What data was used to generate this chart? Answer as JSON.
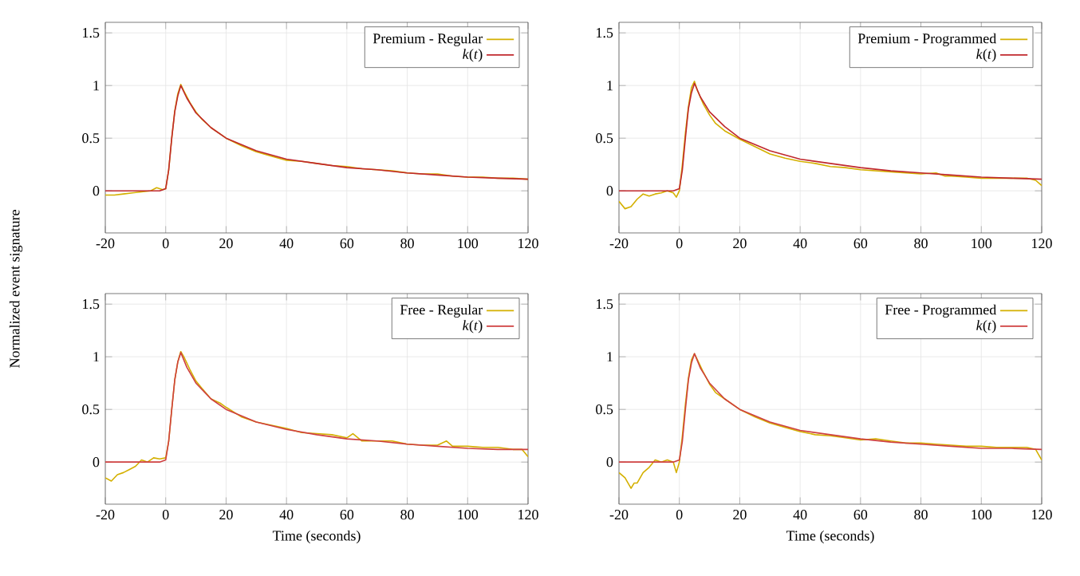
{
  "chart_data": [
    {
      "type": "line",
      "ylabel": "Normalized event signature",
      "xlim": [
        -20,
        120
      ],
      "ylim": [
        -0.4,
        1.6
      ],
      "xticks": [
        -20,
        0,
        20,
        40,
        60,
        80,
        100,
        120
      ],
      "yticks": [
        0,
        0.5,
        1,
        1.5
      ],
      "grid": true,
      "legend": "top right",
      "series": [
        {
          "name": "Premium - Regular",
          "color": "#d4b000",
          "x": [
            -20,
            -17,
            -14,
            -11,
            -8,
            -5,
            -3,
            -1,
            0,
            1,
            2,
            3,
            4,
            5,
            6,
            8,
            10,
            12,
            15,
            20,
            25,
            30,
            35,
            40,
            45,
            50,
            55,
            60,
            65,
            70,
            75,
            80,
            85,
            90,
            95,
            100,
            105,
            110,
            115,
            120
          ],
          "values": [
            -0.04,
            -0.04,
            -0.03,
            -0.02,
            -0.01,
            0.0,
            0.03,
            0.01,
            0.02,
            0.2,
            0.5,
            0.76,
            0.92,
            1.01,
            0.95,
            0.84,
            0.75,
            0.68,
            0.6,
            0.5,
            0.43,
            0.37,
            0.33,
            0.29,
            0.28,
            0.26,
            0.24,
            0.23,
            0.21,
            0.2,
            0.19,
            0.17,
            0.16,
            0.16,
            0.14,
            0.13,
            0.13,
            0.12,
            0.12,
            0.11
          ]
        },
        {
          "name": "*k*(*t*)",
          "color": "#c0282d",
          "x": [
            -20,
            -10,
            -2,
            0,
            1,
            2,
            3,
            4,
            5,
            7,
            10,
            15,
            20,
            30,
            40,
            50,
            60,
            70,
            80,
            90,
            100,
            110,
            120
          ],
          "values": [
            0,
            0,
            0,
            0.02,
            0.2,
            0.5,
            0.75,
            0.9,
            1.0,
            0.88,
            0.74,
            0.6,
            0.5,
            0.38,
            0.3,
            0.26,
            0.22,
            0.2,
            0.17,
            0.15,
            0.13,
            0.12,
            0.11
          ]
        }
      ]
    },
    {
      "type": "line",
      "xlim": [
        -20,
        120
      ],
      "ylim": [
        -0.4,
        1.6
      ],
      "xticks": [
        -20,
        0,
        20,
        40,
        60,
        80,
        100,
        120
      ],
      "yticks": [
        0,
        0.5,
        1,
        1.5
      ],
      "grid": true,
      "legend": "top right",
      "series": [
        {
          "name": "Premium - Programmed",
          "color": "#d4b000",
          "x": [
            -20,
            -18,
            -16,
            -14,
            -12,
            -10,
            -8,
            -6,
            -4,
            -2,
            -1,
            0,
            1,
            2,
            3,
            4,
            5,
            6,
            8,
            10,
            12,
            15,
            20,
            25,
            30,
            35,
            40,
            45,
            50,
            55,
            60,
            65,
            70,
            75,
            80,
            85,
            88,
            90,
            95,
            100,
            105,
            110,
            115,
            118,
            120
          ],
          "values": [
            -0.1,
            -0.17,
            -0.15,
            -0.08,
            -0.03,
            -0.05,
            -0.03,
            -0.02,
            0.0,
            -0.02,
            -0.06,
            0.0,
            0.25,
            0.55,
            0.8,
            0.98,
            1.04,
            0.95,
            0.82,
            0.72,
            0.64,
            0.57,
            0.49,
            0.42,
            0.35,
            0.31,
            0.28,
            0.26,
            0.23,
            0.22,
            0.2,
            0.19,
            0.18,
            0.17,
            0.16,
            0.17,
            0.14,
            0.14,
            0.13,
            0.12,
            0.12,
            0.12,
            0.12,
            0.1,
            0.05
          ]
        },
        {
          "name": "*k*(*t*)",
          "color": "#c0282d",
          "x": [
            -20,
            -10,
            -2,
            0,
            1,
            2,
            3,
            4,
            5,
            7,
            10,
            15,
            20,
            30,
            40,
            50,
            60,
            70,
            80,
            90,
            100,
            110,
            120
          ],
          "values": [
            0,
            0,
            0,
            0.02,
            0.2,
            0.5,
            0.78,
            0.93,
            1.02,
            0.89,
            0.75,
            0.61,
            0.5,
            0.38,
            0.3,
            0.26,
            0.22,
            0.19,
            0.17,
            0.15,
            0.13,
            0.12,
            0.11
          ]
        }
      ]
    },
    {
      "type": "line",
      "xlabel": "Time (seconds)",
      "xlim": [
        -20,
        120
      ],
      "ylim": [
        -0.4,
        1.6
      ],
      "xticks": [
        -20,
        0,
        20,
        40,
        60,
        80,
        100,
        120
      ],
      "yticks": [
        0,
        0.5,
        1,
        1.5
      ],
      "grid": true,
      "legend": "top right",
      "series": [
        {
          "name": "Free - Regular",
          "color": "#d4b000",
          "x": [
            -20,
            -18,
            -16,
            -14,
            -12,
            -10,
            -8,
            -6,
            -4,
            -2,
            0,
            1,
            2,
            3,
            4,
            5,
            6,
            8,
            10,
            12,
            15,
            18,
            20,
            25,
            30,
            35,
            40,
            45,
            50,
            55,
            60,
            62,
            65,
            70,
            75,
            80,
            85,
            90,
            93,
            95,
            100,
            105,
            110,
            115,
            118,
            120
          ],
          "values": [
            -0.15,
            -0.18,
            -0.12,
            -0.1,
            -0.07,
            -0.04,
            0.02,
            0.0,
            0.04,
            0.03,
            0.04,
            0.2,
            0.5,
            0.78,
            0.95,
            1.05,
            1.0,
            0.88,
            0.77,
            0.7,
            0.6,
            0.56,
            0.52,
            0.43,
            0.38,
            0.35,
            0.32,
            0.28,
            0.27,
            0.26,
            0.23,
            0.27,
            0.2,
            0.2,
            0.2,
            0.17,
            0.16,
            0.16,
            0.2,
            0.15,
            0.15,
            0.14,
            0.14,
            0.12,
            0.12,
            0.05
          ]
        },
        {
          "name": "*k*(*t*)",
          "color": "#cf4040",
          "x": [
            -20,
            -10,
            -2,
            0,
            1,
            2,
            3,
            4,
            5,
            7,
            10,
            15,
            20,
            30,
            40,
            50,
            60,
            70,
            80,
            90,
            100,
            110,
            120
          ],
          "values": [
            0,
            0,
            0,
            0.02,
            0.2,
            0.5,
            0.78,
            0.95,
            1.04,
            0.9,
            0.75,
            0.6,
            0.5,
            0.38,
            0.31,
            0.26,
            0.22,
            0.2,
            0.17,
            0.15,
            0.13,
            0.12,
            0.12
          ]
        }
      ]
    },
    {
      "type": "line",
      "xlabel": "Time (seconds)",
      "xlim": [
        -20,
        120
      ],
      "ylim": [
        -0.4,
        1.6
      ],
      "xticks": [
        -20,
        0,
        20,
        40,
        60,
        80,
        100,
        120
      ],
      "yticks": [
        0,
        0.5,
        1,
        1.5
      ],
      "grid": true,
      "legend": "top right",
      "series": [
        {
          "name": "Free - Programmed",
          "color": "#d4b000",
          "x": [
            -20,
            -18,
            -16,
            -15,
            -14,
            -12,
            -10,
            -8,
            -6,
            -4,
            -2,
            -1,
            0,
            1,
            2,
            3,
            4,
            5,
            6,
            8,
            10,
            12,
            15,
            20,
            25,
            30,
            35,
            40,
            45,
            50,
            55,
            60,
            65,
            70,
            75,
            80,
            85,
            90,
            95,
            100,
            105,
            110,
            115,
            118,
            120
          ],
          "values": [
            -0.1,
            -0.15,
            -0.25,
            -0.2,
            -0.2,
            -0.1,
            -0.05,
            0.02,
            0.0,
            0.02,
            0.0,
            -0.1,
            0.0,
            0.25,
            0.55,
            0.8,
            0.97,
            1.03,
            0.97,
            0.85,
            0.74,
            0.66,
            0.6,
            0.5,
            0.43,
            0.37,
            0.33,
            0.29,
            0.26,
            0.25,
            0.23,
            0.21,
            0.22,
            0.2,
            0.18,
            0.18,
            0.17,
            0.16,
            0.15,
            0.15,
            0.14,
            0.14,
            0.14,
            0.12,
            0.02
          ]
        },
        {
          "name": "*k*(*t*)",
          "color": "#cf4040",
          "x": [
            -20,
            -10,
            -2,
            0,
            1,
            2,
            3,
            4,
            5,
            7,
            10,
            15,
            20,
            30,
            40,
            50,
            60,
            70,
            80,
            90,
            100,
            110,
            120
          ],
          "values": [
            0,
            0,
            0,
            0.02,
            0.2,
            0.5,
            0.78,
            0.94,
            1.03,
            0.89,
            0.75,
            0.6,
            0.5,
            0.38,
            0.3,
            0.26,
            0.22,
            0.19,
            0.17,
            0.15,
            0.13,
            0.13,
            0.12
          ]
        }
      ]
    }
  ]
}
